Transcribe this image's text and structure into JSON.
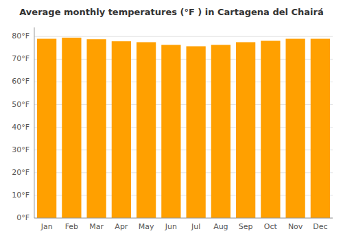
{
  "chart_data": {
    "type": "bar",
    "title": "Average monthly temperatures (°F ) in Cartagena del Chairá",
    "categories": [
      "Jan",
      "Feb",
      "Mar",
      "Apr",
      "May",
      "Jun",
      "Jul",
      "Aug",
      "Sep",
      "Oct",
      "Nov",
      "Dec"
    ],
    "values": [
      79.0,
      79.5,
      78.8,
      77.9,
      77.5,
      76.3,
      75.7,
      76.3,
      77.5,
      78.1,
      79.0,
      79.0
    ],
    "color": "#FFA000",
    "ylim": [
      0,
      84
    ],
    "yticks": [
      {
        "value": 0,
        "label": "0°F"
      },
      {
        "value": 10,
        "label": "10°F"
      },
      {
        "value": 20,
        "label": "20°F"
      },
      {
        "value": 30,
        "label": "30°F"
      },
      {
        "value": 40,
        "label": "40°F"
      },
      {
        "value": 50,
        "label": "50°F"
      },
      {
        "value": 60,
        "label": "60°F"
      },
      {
        "value": 70,
        "label": "70°F"
      },
      {
        "value": 80,
        "label": "80°F"
      }
    ],
    "grid": true
  }
}
